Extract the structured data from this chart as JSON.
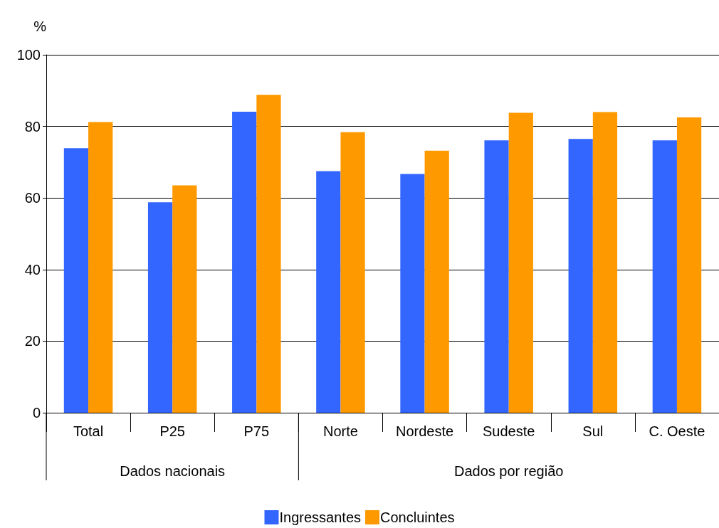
{
  "chart_data": {
    "type": "bar",
    "ylabel": "%",
    "categories": [
      "Total",
      "P25",
      "P75",
      "Norte",
      "Nordeste",
      "Sudeste",
      "Sul",
      "C. Oeste"
    ],
    "series": [
      {
        "name": "Ingressantes",
        "color": "#3366ff",
        "values": [
          73.9,
          58.8,
          84.1,
          67.5,
          66.7,
          76.1,
          76.5,
          76.1
        ]
      },
      {
        "name": "Concluintes",
        "color": "#ff9900",
        "values": [
          81.2,
          63.5,
          88.8,
          78.4,
          73.2,
          83.8,
          84.0,
          82.5
        ]
      }
    ],
    "ylim": [
      0,
      100
    ],
    "yticks": [
      0,
      20,
      40,
      60,
      80,
      100
    ],
    "grid": "y",
    "legend": "bottom",
    "annotations": [
      "Dados nacionais",
      "Dados por região"
    ]
  }
}
